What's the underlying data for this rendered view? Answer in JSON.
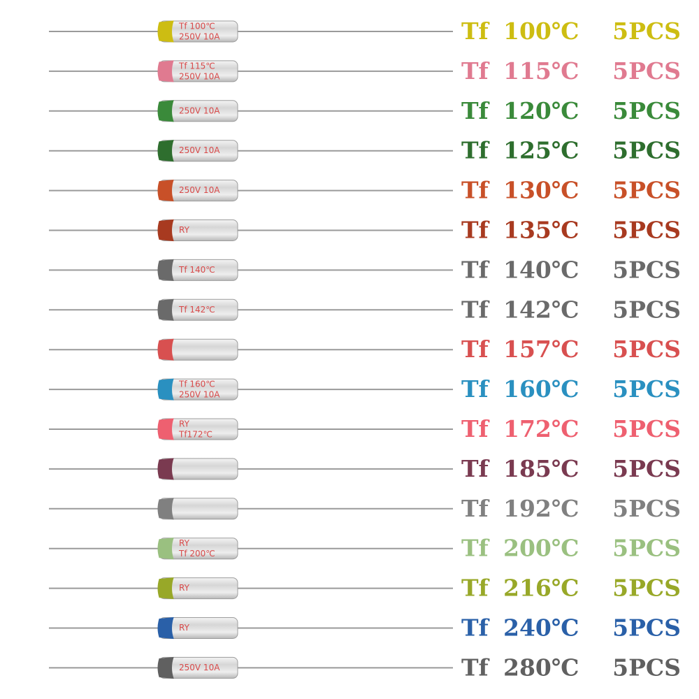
{
  "rows": [
    {
      "tf": "Tf",
      "temp": "100℃",
      "qty": "5PCS",
      "color": "#cdbd12",
      "marking": [
        "Tf 100℃",
        "250V 10A"
      ]
    },
    {
      "tf": "Tf",
      "temp": "115℃",
      "qty": "5PCS",
      "color": "#e07a90",
      "marking": [
        "Tf 115℃",
        "250V 10A"
      ]
    },
    {
      "tf": "Tf",
      "temp": "120℃",
      "qty": "5PCS",
      "color": "#3a8a3a",
      "marking": [
        "250V 10A"
      ]
    },
    {
      "tf": "Tf",
      "temp": "125℃",
      "qty": "5PCS",
      "color": "#2e6e2e",
      "marking": [
        "250V 10A"
      ]
    },
    {
      "tf": "Tf",
      "temp": "130℃",
      "qty": "5PCS",
      "color": "#c85028",
      "marking": [
        "250V 10A"
      ]
    },
    {
      "tf": "Tf",
      "temp": "135℃",
      "qty": "5PCS",
      "color": "#a83a20",
      "marking": [
        "RY"
      ]
    },
    {
      "tf": "Tf",
      "temp": "140℃",
      "qty": "5PCS",
      "color": "#6a6a6a",
      "marking": [
        "Tf 140℃"
      ]
    },
    {
      "tf": "Tf",
      "temp": "142℃",
      "qty": "5PCS",
      "color": "#6a6a6a",
      "marking": [
        "Tf 142℃"
      ]
    },
    {
      "tf": "Tf",
      "temp": "157℃",
      "qty": "5PCS",
      "color": "#d85050",
      "marking": []
    },
    {
      "tf": "Tf",
      "temp": "160℃",
      "qty": "5PCS",
      "color": "#2a90c0",
      "marking": [
        "Tf 160℃",
        "250V 10A"
      ]
    },
    {
      "tf": "Tf",
      "temp": "172℃",
      "qty": "5PCS",
      "color": "#ee6070",
      "marking": [
        "RY",
        "Tf172℃"
      ]
    },
    {
      "tf": "Tf",
      "temp": "185℃",
      "qty": "5PCS",
      "color": "#7a3a50",
      "marking": []
    },
    {
      "tf": "Tf",
      "temp": "192℃",
      "qty": "5PCS",
      "color": "#808080",
      "marking": []
    },
    {
      "tf": "Tf",
      "temp": "200℃",
      "qty": "5PCS",
      "color": "#9ac080",
      "marking": [
        "RY",
        "Tf 200℃"
      ]
    },
    {
      "tf": "Tf",
      "temp": "216℃",
      "qty": "5PCS",
      "color": "#98a828",
      "marking": [
        "RY"
      ]
    },
    {
      "tf": "Tf",
      "temp": "240℃",
      "qty": "5PCS",
      "color": "#2a60a8",
      "marking": [
        "RY"
      ]
    },
    {
      "tf": "Tf",
      "temp": "280℃",
      "qty": "5PCS",
      "color": "#606060",
      "marking": [
        "250V 10A"
      ]
    }
  ]
}
